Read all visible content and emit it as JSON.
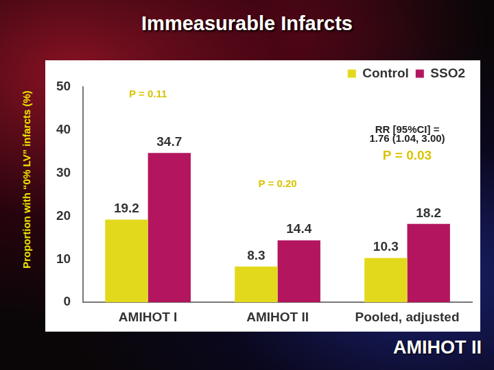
{
  "chart_data": {
    "type": "bar",
    "title": "Immeasurable Infarcts",
    "y_label": "Proportion with “0% LV” infarcts (%)",
    "categories": [
      "AMIHOT I",
      "AMIHOT II",
      "Pooled, adjusted"
    ],
    "series": [
      {
        "name": "Control",
        "color": "#e3d91c",
        "values": [
          19.2,
          8.3,
          10.3
        ]
      },
      {
        "name": "SSO2",
        "color": "#b3165f",
        "values": [
          34.7,
          14.4,
          18.2
        ]
      }
    ],
    "ylim": [
      0,
      50
    ],
    "yticks": [
      0,
      10,
      20,
      30,
      40,
      50
    ],
    "grid": false,
    "legend": "top right",
    "data_labels": true,
    "annotations": [
      "P = 0.11",
      "P = 0.20",
      "RR [95%CI] =",
      "1.76 (1.04, 3.00)",
      "P = 0.03"
    ],
    "footer": "AMIHOT II"
  }
}
